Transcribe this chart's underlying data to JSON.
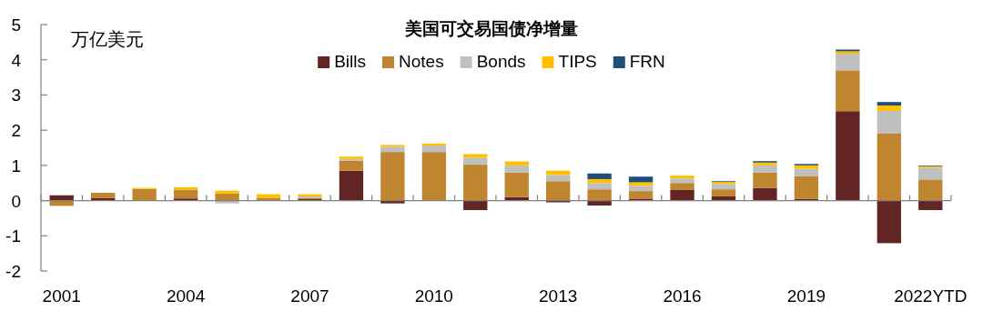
{
  "chart_data": {
    "type": "bar",
    "stacked": true,
    "title": "美国可交易国债净增量",
    "ylabel": "万亿美元",
    "categories": [
      "2001",
      null,
      null,
      "2004",
      null,
      null,
      "2007",
      null,
      null,
      "2010",
      null,
      null,
      "2013",
      null,
      null,
      "2016",
      null,
      null,
      "2019",
      null,
      null,
      "2022YTD"
    ],
    "series": [
      {
        "name": "Bills",
        "color": "#632523",
        "values": [
          0.15,
          0.07,
          null,
          0.06,
          0,
          0.01,
          0.04,
          0.85,
          -0.08,
          0,
          -0.27,
          0.1,
          -0.05,
          -0.14,
          0.04,
          0.3,
          0.12,
          0.36,
          0.05,
          2.54,
          -1.21,
          -0.27
        ]
      },
      {
        "name": "Notes",
        "color": "#c0862f",
        "values": [
          -0.15,
          0.15,
          0.33,
          0.25,
          0.2,
          0.07,
          0.03,
          0.28,
          1.38,
          1.38,
          1.02,
          0.7,
          0.55,
          0.32,
          0.23,
          0.2,
          0.2,
          0.44,
          0.65,
          1.16,
          1.9,
          0.6
        ]
      },
      {
        "name": "Bonds",
        "color": "#bfbfbf",
        "values": [
          0,
          0,
          0,
          0,
          -0.08,
          0,
          0.05,
          0.05,
          0.15,
          0.18,
          0.2,
          0.2,
          0.18,
          0.18,
          0.15,
          0.13,
          0.15,
          0.2,
          0.2,
          0.47,
          0.65,
          0.33
        ]
      },
      {
        "name": "TIPS",
        "color": "#ffc000",
        "values": [
          0,
          0,
          0.03,
          0.07,
          0.08,
          0.1,
          0.06,
          0.07,
          0.05,
          0.06,
          0.1,
          0.11,
          0.12,
          0.11,
          0.1,
          0.08,
          0.06,
          0.08,
          0.1,
          0.07,
          0.15,
          0.04
        ]
      },
      {
        "name": "FRN",
        "color": "#1f4e79",
        "values": [
          0,
          0,
          0,
          0,
          0,
          0,
          0,
          0,
          0,
          0,
          0,
          0,
          0,
          0.16,
          0.16,
          0,
          0.02,
          0.04,
          0.04,
          0.05,
          0.1,
          0.02
        ]
      }
    ],
    "ylim": [
      -2,
      5
    ],
    "yticks": [
      -2,
      -1,
      0,
      1,
      2,
      3,
      4,
      5
    ],
    "legend": "top"
  }
}
